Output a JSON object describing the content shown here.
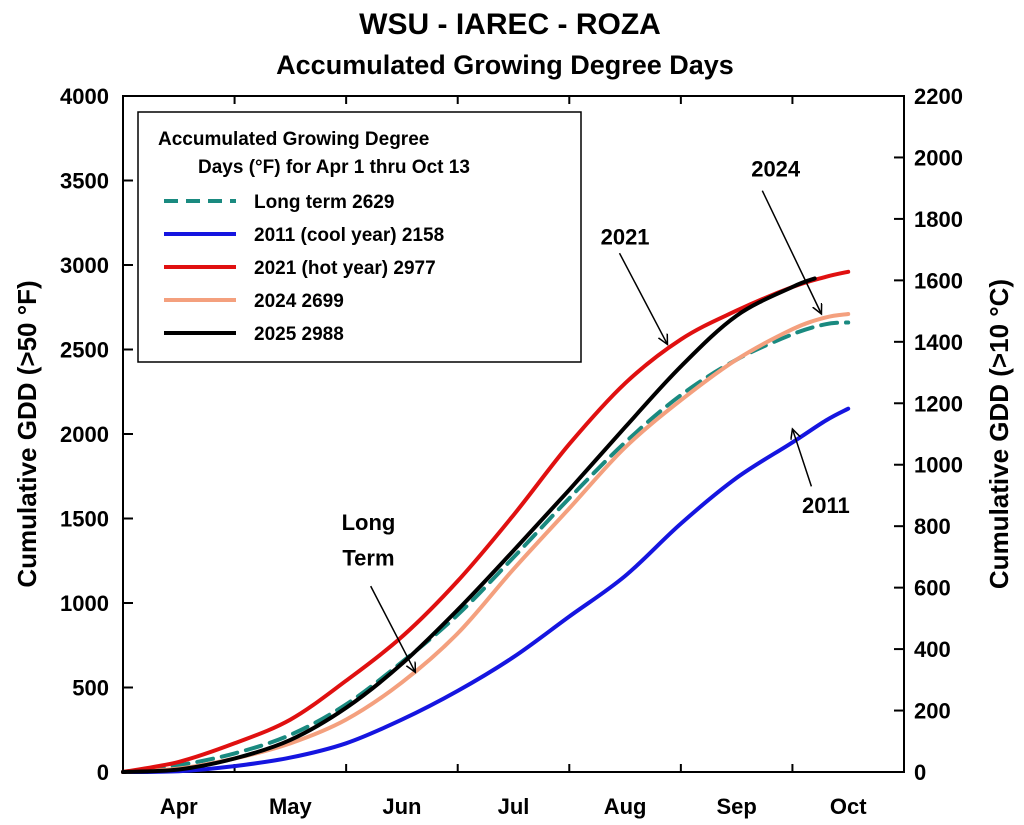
{
  "chart_data": {
    "type": "line",
    "title": "WSU - IAREC - ROZA",
    "subtitle": "Accumulated Growing Degree Days",
    "ylabel_left": "Cumulative GDD (>50 °F)",
    "ylabel_right": "Cumulative GDD (>10 °C)",
    "xlim": [
      0,
      7
    ],
    "ylim_left": [
      0,
      4000
    ],
    "ylim_right": [
      0,
      2200
    ],
    "x_ticks": [
      {
        "label": "Apr",
        "x": 0.5
      },
      {
        "label": "May",
        "x": 1.5
      },
      {
        "label": "Jun",
        "x": 2.5
      },
      {
        "label": "Jul",
        "x": 3.5
      },
      {
        "label": "Aug",
        "x": 4.5
      },
      {
        "label": "Sep",
        "x": 5.5
      },
      {
        "label": "Oct",
        "x": 6.5
      }
    ],
    "x_tick_marks": [
      1,
      2,
      3,
      4,
      5,
      6
    ],
    "yticks_left": [
      "0",
      "500",
      "1000",
      "1500",
      "2000",
      "2500",
      "3000",
      "3500",
      "4000"
    ],
    "yticks_right": [
      "0",
      "200",
      "400",
      "600",
      "800",
      "1000",
      "1200",
      "1400",
      "1600",
      "1800",
      "2000",
      "2200"
    ],
    "legend": {
      "title_line1": "Accumulated Growing Degree",
      "title_line2": "Days (°F) for Apr 1 thru Oct 13",
      "position": "top-left"
    },
    "series": [
      {
        "name": "Long term 2629",
        "color": "#1a8a80",
        "dashed": true,
        "x": [
          0,
          0.5,
          1,
          1.5,
          2,
          2.5,
          3,
          3.5,
          4,
          4.5,
          5,
          5.5,
          6,
          6.3,
          6.5
        ],
        "y": [
          0,
          40,
          110,
          220,
          400,
          650,
          930,
          1270,
          1620,
          1950,
          2230,
          2440,
          2590,
          2650,
          2660
        ]
      },
      {
        "name": "2011 (cool year)  2158",
        "color": "#1515e0",
        "dashed": false,
        "x": [
          0,
          0.5,
          1,
          1.5,
          2,
          2.5,
          3,
          3.5,
          4,
          4.5,
          5,
          5.5,
          6,
          6.3,
          6.5
        ],
        "y": [
          0,
          5,
          35,
          85,
          170,
          310,
          480,
          680,
          920,
          1160,
          1470,
          1740,
          1950,
          2080,
          2150
        ]
      },
      {
        "name": "2021 (hot year) 2977",
        "color": "#e01010",
        "dashed": false,
        "x": [
          0,
          0.5,
          1,
          1.5,
          2,
          2.5,
          3,
          3.5,
          4,
          4.5,
          5,
          5.5,
          6,
          6.3,
          6.5
        ],
        "y": [
          0,
          60,
          170,
          310,
          540,
          800,
          1130,
          1520,
          1940,
          2300,
          2560,
          2730,
          2870,
          2930,
          2960
        ]
      },
      {
        "name": "2024 2699",
        "color": "#f4a07e",
        "dashed": false,
        "x": [
          0,
          0.5,
          1,
          1.5,
          2,
          2.5,
          3,
          3.5,
          4,
          4.5,
          5,
          5.5,
          6,
          6.3,
          6.5
        ],
        "y": [
          0,
          20,
          80,
          170,
          310,
          530,
          820,
          1200,
          1560,
          1920,
          2200,
          2440,
          2620,
          2690,
          2710
        ]
      },
      {
        "name": "2025 2988",
        "color": "#000000",
        "dashed": false,
        "x": [
          0,
          0.5,
          1,
          1.5,
          2,
          2.5,
          3,
          3.5,
          4,
          4.5,
          5,
          5.5,
          6,
          6.2
        ],
        "y": [
          0,
          15,
          80,
          190,
          380,
          640,
          960,
          1310,
          1670,
          2040,
          2400,
          2700,
          2870,
          2920
        ]
      }
    ],
    "annotations": [
      {
        "text": "2021",
        "tx": 4.5,
        "ty": 3170,
        "ax": 4.45,
        "ay": 3070,
        "bx": 4.88,
        "by": 2530
      },
      {
        "text": "2024",
        "tx": 5.85,
        "ty": 3570,
        "ax": 5.73,
        "ay": 3440,
        "bx": 6.26,
        "by": 2710
      },
      {
        "text": "Long",
        "tx": 2.2,
        "ty": 1480,
        "ax": 0,
        "ay": 0,
        "bx": 0,
        "by": 0
      },
      {
        "text": "Term",
        "tx": 2.2,
        "ty": 1270,
        "ax": 2.22,
        "ay": 1100,
        "bx": 2.62,
        "by": 590
      },
      {
        "text": "2011",
        "tx": 6.3,
        "ty": 1580,
        "ax": 6.17,
        "ay": 1690,
        "bx": 6.0,
        "by": 2030
      }
    ]
  }
}
